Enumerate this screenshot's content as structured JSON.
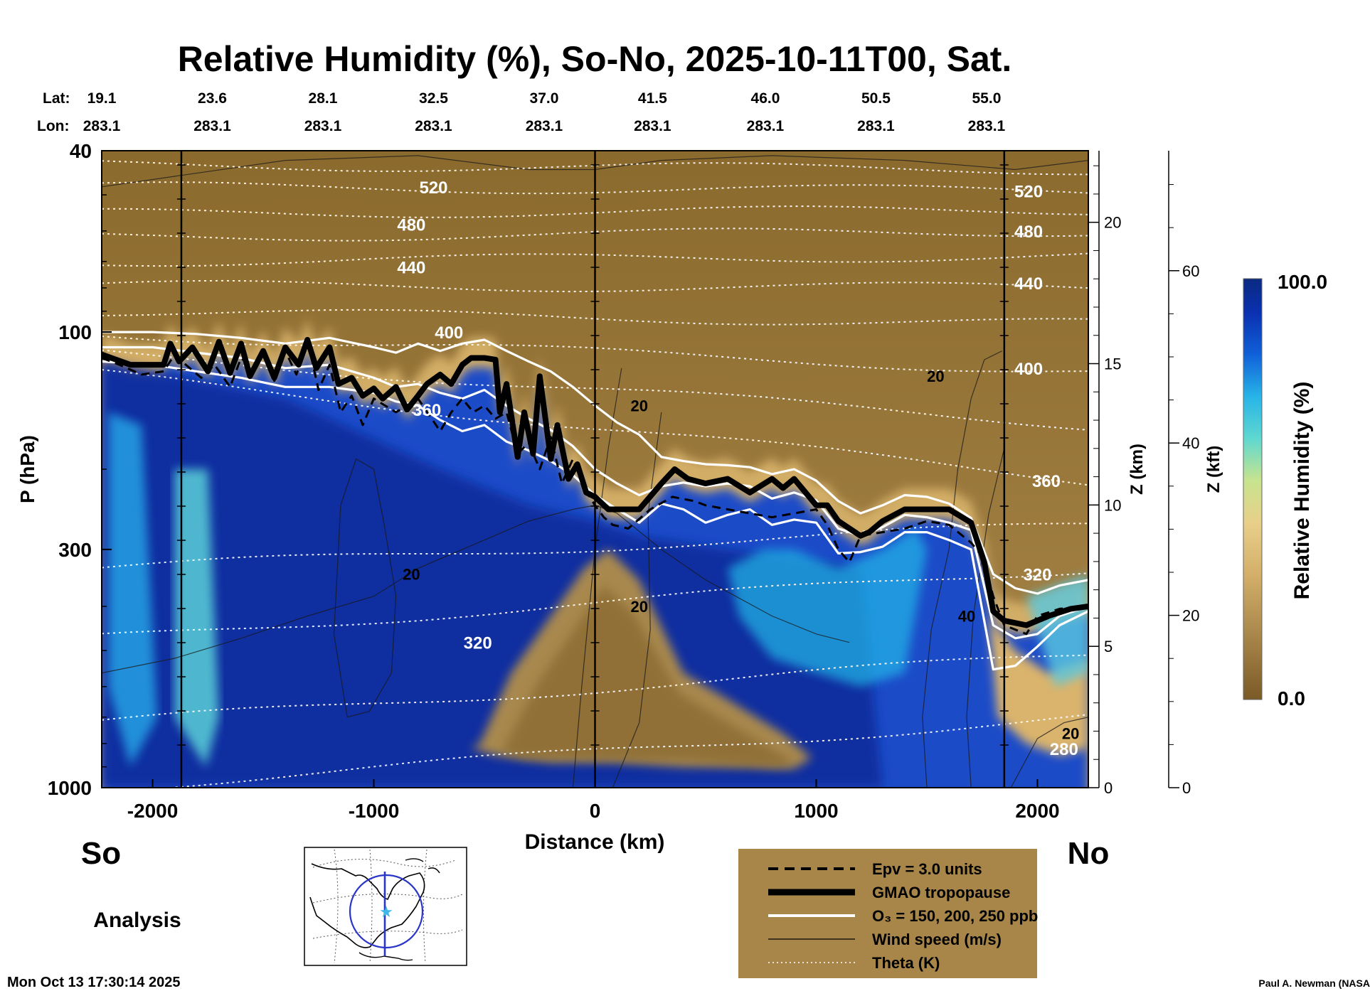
{
  "chart_data": {
    "type": "heatmap",
    "title": "Relative Humidity (%), So-No, 2025-10-11T00, Sat.",
    "xlabel": "Distance (km)",
    "ylabel": "P (hPa)",
    "y2label": "Z (km)",
    "y3label": "Z (kft)",
    "xlim": [
      -2230,
      2230
    ],
    "ylim": [
      1000,
      40
    ],
    "y_scale": "log",
    "x_ticks": [
      -2000,
      -1000,
      0,
      1000,
      2000
    ],
    "y_ticks": [
      40,
      100,
      300,
      1000
    ],
    "z_km_ticks": [
      0,
      5,
      10,
      15,
      20
    ],
    "z_kft_ticks": [
      0,
      20,
      40,
      60
    ],
    "lat_label": "Lat:",
    "lon_label": "Lon:",
    "latlon_distances": [
      -2230,
      -1730,
      -1230,
      -730,
      -230,
      260,
      770,
      1270,
      1770
    ],
    "lat_values": [
      "19.1",
      "23.6",
      "28.1",
      "32.5",
      "37.0",
      "41.5",
      "46.0",
      "50.5",
      "55.0"
    ],
    "lon_values": [
      "283.1",
      "283.1",
      "283.1",
      "283.1",
      "283.1",
      "283.1",
      "283.1",
      "283.1",
      "283.1"
    ],
    "vertical_lines_km": [
      -1870,
      0,
      1850
    ],
    "side_left": "So",
    "side_right": "No",
    "analysis_label": "Analysis",
    "colorbar": {
      "label": "Relative Humidity (%)",
      "max_label": "100.0",
      "min_label": "0.0",
      "low_color": "#8b6a2e",
      "high_color": "#0a2a80"
    },
    "theta_labels": [
      {
        "text": "520",
        "x": -730,
        "p": 48
      },
      {
        "text": "480",
        "x": -830,
        "p": 58
      },
      {
        "text": "440",
        "x": -830,
        "p": 72
      },
      {
        "text": "400",
        "x": -660,
        "p": 100
      },
      {
        "text": "360",
        "x": -760,
        "p": 148
      },
      {
        "text": "320",
        "x": -530,
        "p": 480
      },
      {
        "text": "520",
        "x": 1960,
        "p": 49
      },
      {
        "text": "480",
        "x": 1960,
        "p": 60
      },
      {
        "text": "440",
        "x": 1960,
        "p": 78
      },
      {
        "text": "400",
        "x": 1960,
        "p": 120
      },
      {
        "text": "360",
        "x": 2040,
        "p": 212
      },
      {
        "text": "320",
        "x": 2000,
        "p": 340
      },
      {
        "text": "280",
        "x": 2120,
        "p": 820
      }
    ],
    "wind_labels": [
      {
        "text": "20",
        "x": -830,
        "p": 340
      },
      {
        "text": "20",
        "x": 200,
        "p": 400
      },
      {
        "text": "20",
        "x": 200,
        "p": 145
      },
      {
        "text": "20",
        "x": 1540,
        "p": 125
      },
      {
        "text": "40",
        "x": 1680,
        "p": 420
      },
      {
        "text": "20",
        "x": 2150,
        "p": 760
      }
    ],
    "tropopause": {
      "x": [
        -2230,
        -2100,
        -1950,
        -1920,
        -1880,
        -1820,
        -1750,
        -1700,
        -1650,
        -1600,
        -1560,
        -1500,
        -1450,
        -1400,
        -1340,
        -1300,
        -1260,
        -1200,
        -1160,
        -1100,
        -1050,
        -1000,
        -960,
        -900,
        -850,
        -800,
        -760,
        -700,
        -650,
        -600,
        -560,
        -500,
        -450,
        -430,
        -400,
        -350,
        -320,
        -280,
        -250,
        -200,
        -170,
        -120,
        -80,
        -40,
        0,
        60,
        200,
        300,
        360,
        420,
        500,
        600,
        700,
        800,
        850,
        900,
        1000,
        1050,
        1100,
        1200,
        1240,
        1300,
        1400,
        1600,
        1700,
        1760,
        1800,
        1850,
        1950,
        2050,
        2150,
        2230
      ],
      "p": [
        112,
        118,
        118,
        106,
        116,
        108,
        122,
        105,
        123,
        106,
        125,
        110,
        126,
        108,
        118,
        104,
        120,
        108,
        130,
        126,
        138,
        133,
        140,
        132,
        148,
        138,
        130,
        124,
        130,
        118,
        114,
        114,
        115,
        150,
        130,
        188,
        150,
        185,
        125,
        190,
        160,
        210,
        195,
        225,
        230,
        245,
        245,
        215,
        200,
        210,
        215,
        210,
        225,
        210,
        220,
        210,
        240,
        240,
        260,
        280,
        275,
        260,
        245,
        245,
        262,
        320,
        410,
        430,
        440,
        420,
        405,
        400
      ]
    },
    "epv": {
      "x": [
        -2230,
        -2150,
        -2050,
        -1950,
        -1900,
        -1850,
        -1780,
        -1720,
        -1650,
        -1600,
        -1550,
        -1500,
        -1450,
        -1400,
        -1350,
        -1300,
        -1250,
        -1200,
        -1150,
        -1100,
        -1050,
        -1000,
        -900,
        -800,
        -700,
        -650,
        -600,
        -550,
        -500,
        -450,
        -400,
        -350,
        -300,
        -250,
        -200,
        -150,
        -100,
        -50,
        0,
        40,
        80,
        150,
        250,
        350,
        450,
        500,
        600,
        700,
        800,
        900,
        1000,
        1050,
        1100,
        1150,
        1200,
        1300,
        1400,
        1500,
        1600,
        1700,
        1750,
        1800,
        1850,
        1900,
        1950,
        2000,
        2100,
        2230
      ],
      "p": [
        114,
        118,
        124,
        122,
        112,
        118,
        126,
        118,
        132,
        114,
        120,
        112,
        128,
        110,
        124,
        104,
        134,
        118,
        150,
        138,
        160,
        140,
        150,
        140,
        165,
        150,
        140,
        150,
        145,
        155,
        150,
        185,
        175,
        200,
        170,
        215,
        190,
        220,
        240,
        255,
        265,
        270,
        245,
        230,
        235,
        240,
        245,
        250,
        255,
        250,
        245,
        265,
        300,
        320,
        280,
        275,
        270,
        260,
        265,
        290,
        310,
        380,
        440,
        450,
        460,
        420,
        405,
        400
      ]
    },
    "o3_contours": [
      {
        "x": [
          -2230,
          -2000,
          -1800,
          -1600,
          -1400,
          -1200,
          -1000,
          -900,
          -800,
          -700,
          -600,
          -500,
          -400,
          -300,
          -200,
          -100,
          0,
          100,
          200,
          300,
          400,
          500,
          600,
          700,
          800,
          900,
          1000,
          1100,
          1200,
          1300,
          1400,
          1500,
          1600,
          1700,
          1800,
          1900,
          2000,
          2100,
          2230
        ],
        "p": [
          100,
          100,
          101,
          103,
          106,
          103,
          108,
          111,
          106,
          110,
          106,
          104,
          110,
          116,
          122,
          132,
          145,
          158,
          168,
          188,
          192,
          195,
          196,
          198,
          205,
          200,
          212,
          235,
          250,
          240,
          228,
          230,
          238,
          256,
          340,
          365,
          375,
          360,
          350
        ]
      },
      {
        "x": [
          -2230,
          -2000,
          -1800,
          -1600,
          -1400,
          -1200,
          -1000,
          -900,
          -800,
          -700,
          -600,
          -500,
          -400,
          -300,
          -200,
          -100,
          0,
          100,
          200,
          300,
          400,
          500,
          600,
          700,
          800,
          900,
          1000,
          1100,
          1200,
          1300,
          1400,
          1500,
          1600,
          1700,
          1800,
          1900,
          2000,
          2100,
          2230
        ],
        "p": [
          108,
          108,
          111,
          114,
          120,
          118,
          126,
          132,
          130,
          136,
          140,
          134,
          145,
          155,
          164,
          178,
          200,
          215,
          228,
          218,
          214,
          218,
          215,
          218,
          232,
          225,
          234,
          270,
          280,
          268,
          252,
          255,
          262,
          272,
          440,
          470,
          460,
          420,
          400
        ]
      },
      {
        "x": [
          -2230,
          -2000,
          -1800,
          -1600,
          -1400,
          -1200,
          -1000,
          -900,
          -800,
          -700,
          -600,
          -500,
          -400,
          -300,
          -200,
          -100,
          0,
          100,
          200,
          300,
          400,
          500,
          600,
          700,
          800,
          900,
          1000,
          1100,
          1200,
          1300,
          1400,
          1500,
          1600,
          1700,
          1800,
          1900,
          2000,
          2100,
          2230
        ],
        "p": [
          116,
          118,
          122,
          126,
          132,
          132,
          136,
          142,
          145,
          156,
          165,
          160,
          174,
          182,
          192,
          206,
          228,
          245,
          262,
          238,
          245,
          262,
          252,
          245,
          265,
          258,
          262,
          306,
          304,
          296,
          275,
          275,
          286,
          300,
          550,
          540,
          490,
          440,
          410
        ]
      }
    ],
    "wind_contours": [
      {
        "x": [
          -2230,
          -1400,
          -800,
          -300,
          0,
          300,
          800,
          1400,
          1900,
          2230
        ],
        "p": [
          48,
          42,
          41,
          44,
          44,
          42,
          41,
          42,
          44,
          42
        ]
      },
      {
        "x": [
          -1150,
          -1080,
          -1000,
          -950,
          -900,
          -920,
          -1020,
          -1120,
          -1180,
          -1150
        ],
        "p": [
          240,
          190,
          200,
          270,
          380,
          560,
          680,
          700,
          460,
          240
        ]
      },
      {
        "x": [
          -2230,
          -1900,
          -1600,
          -1300,
          -1000,
          -800,
          -600,
          -300,
          -100,
          0,
          100,
          300,
          500,
          800,
          1000,
          1150
        ],
        "p": [
          560,
          520,
          470,
          420,
          380,
          330,
          300,
          260,
          245,
          240,
          250,
          300,
          350,
          420,
          460,
          480
        ]
      },
      {
        "x": [
          80,
          200,
          250,
          240,
          300
        ],
        "p": [
          1000,
          720,
          450,
          250,
          150
        ]
      },
      {
        "x": [
          1500,
          1480,
          1520,
          1600,
          1640,
          1700,
          1760,
          1840
        ],
        "p": [
          1000,
          700,
          450,
          300,
          200,
          140,
          115,
          110
        ]
      },
      {
        "x": [
          1700,
          1680,
          1710,
          1780,
          1850
        ],
        "p": [
          1000,
          700,
          420,
          250,
          180
        ]
      },
      {
        "x": [
          1880,
          2000,
          2120,
          2230
        ],
        "p": [
          1000,
          780,
          720,
          700
        ]
      },
      {
        "x": [
          -100,
          -60,
          0,
          60,
          120
        ],
        "p": [
          1000,
          600,
          300,
          180,
          120
        ]
      }
    ],
    "theta_levels": [
      {
        "label": "280",
        "p_left": 1000,
        "p_right": 700
      },
      {
        "label": "300",
        "p_left": 720,
        "p_right": 510
      },
      {
        "label": "320",
        "p_left": 470,
        "p_right": 330
      },
      {
        "label": "340",
        "p_left": 330,
        "p_right": 265
      },
      {
        "label": "360",
        "p_left": 124,
        "p_right": 212
      },
      {
        "label": "380",
        "p_left": 112,
        "p_right": 160
      },
      {
        "label": "400",
        "p_left": 101,
        "p_right": 122
      },
      {
        "label": "420",
        "p_left": 90,
        "p_right": 96
      },
      {
        "label": "440",
        "p_left": 79,
        "p_right": 80
      },
      {
        "label": "460",
        "p_left": 70,
        "p_right": 68
      },
      {
        "label": "480",
        "p_left": 62,
        "p_right": 60
      },
      {
        "label": "500",
        "p_left": 55,
        "p_right": 54
      },
      {
        "label": "520",
        "p_left": 48,
        "p_right": 49
      },
      {
        "label": "540",
        "p_left": 43,
        "p_right": 44
      }
    ],
    "legend": {
      "items": [
        {
          "label": "Epv = 3.0 units",
          "style": "dashed"
        },
        {
          "label": "GMAO tropopause",
          "style": "thick"
        },
        {
          "label": "O₃ = 150, 200, 250 ppb",
          "style": "white"
        },
        {
          "label": "Wind speed (m/s)",
          "style": "thin"
        },
        {
          "label": "Theta (K)",
          "style": "dotted"
        }
      ],
      "background": "#a8864a"
    }
  },
  "footer": {
    "timestamp": "Mon Oct 13 17:30:14 2025",
    "credit": "Paul A. Newman (NASA"
  }
}
